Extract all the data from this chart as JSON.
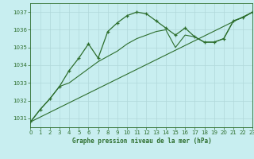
{
  "title": "Graphe pression niveau de la mer (hPa)",
  "bg_color": "#c8eef0",
  "grid_color": "#b0d8da",
  "line_color": "#2d6e2d",
  "x_min": 0,
  "x_max": 23,
  "y_min": 1030.5,
  "y_max": 1037.5,
  "y_ticks": [
    1031,
    1032,
    1033,
    1034,
    1035,
    1036,
    1037
  ],
  "x_ticks": [
    0,
    1,
    2,
    3,
    4,
    5,
    6,
    7,
    8,
    9,
    10,
    11,
    12,
    13,
    14,
    15,
    16,
    17,
    18,
    19,
    20,
    21,
    22,
    23
  ],
  "wavy_x": [
    0,
    1,
    2,
    3,
    4,
    5,
    6,
    7,
    8,
    9,
    10,
    11,
    12,
    13,
    14,
    15,
    16,
    17,
    18,
    19,
    20,
    21,
    22,
    23
  ],
  "wavy_y": [
    1030.8,
    1031.5,
    1032.1,
    1032.8,
    1033.7,
    1034.4,
    1035.2,
    1034.4,
    1035.9,
    1036.4,
    1036.8,
    1037.0,
    1036.9,
    1036.5,
    1036.1,
    1035.7,
    1036.1,
    1035.6,
    1035.3,
    1035.3,
    1035.5,
    1036.5,
    1036.7,
    1037.0
  ],
  "smooth_x": [
    0,
    1,
    2,
    3,
    4,
    5,
    6,
    7,
    8,
    9,
    10,
    11,
    12,
    13,
    14,
    15,
    16,
    17,
    18,
    19,
    20,
    21,
    22,
    23
  ],
  "smooth_y": [
    1030.8,
    1031.5,
    1032.1,
    1032.8,
    1033.0,
    1033.4,
    1033.8,
    1034.2,
    1034.5,
    1034.8,
    1035.2,
    1035.5,
    1035.7,
    1035.9,
    1036.0,
    1035.0,
    1035.7,
    1035.6,
    1035.3,
    1035.3,
    1035.5,
    1036.5,
    1036.7,
    1037.0
  ],
  "line_x": [
    0,
    23
  ],
  "line_y": [
    1030.8,
    1037.0
  ]
}
